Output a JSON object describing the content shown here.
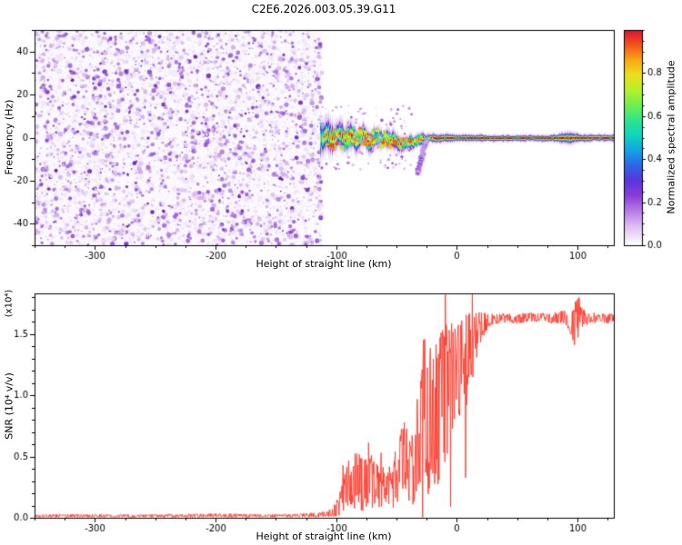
{
  "figure": {
    "background": "#ffffff"
  },
  "chart_data": [
    {
      "type": "heatmap",
      "title": "C2E6.2026.003.05.39.G11",
      "xlabel": "Height of straight line (km)",
      "ylabel": "Frequency (Hz)",
      "xlim": [
        -350,
        130
      ],
      "ylim": [
        -50,
        50
      ],
      "xticks": [
        -300,
        -200,
        -100,
        0,
        100
      ],
      "xminor": 25,
      "yticks": [
        -40,
        -20,
        0,
        20,
        40
      ],
      "yminor": 10,
      "grid": false,
      "colorbar": {
        "label": "Normalized spectral amplitude",
        "ticks": [
          0.0,
          0.2,
          0.4,
          0.6,
          0.8
        ],
        "minor": 0.05,
        "range": [
          0,
          1
        ]
      },
      "colormap": [
        [
          0.0,
          "#ffffff"
        ],
        [
          0.03,
          "#f2e8fa"
        ],
        [
          0.09,
          "#dcbcf2"
        ],
        [
          0.16,
          "#b87ae6"
        ],
        [
          0.23,
          "#8a3fd6"
        ],
        [
          0.3,
          "#5a35dd"
        ],
        [
          0.37,
          "#2f63e8"
        ],
        [
          0.44,
          "#14a3e3"
        ],
        [
          0.51,
          "#0fd4c2"
        ],
        [
          0.58,
          "#2fe48d"
        ],
        [
          0.65,
          "#6fee4f"
        ],
        [
          0.72,
          "#b5f22c"
        ],
        [
          0.79,
          "#ecdf1d"
        ],
        [
          0.86,
          "#f8a913"
        ],
        [
          0.93,
          "#f0551c"
        ],
        [
          1.0,
          "#dd1230"
        ]
      ],
      "noise_field": {
        "description": "dense purple speckle noise before signal acquisition",
        "x_range": [
          -350,
          -112
        ],
        "dot_count": 5200,
        "palette": [
          "#efe2f9",
          "#d3aff0",
          "#9c5fd9",
          "#6d22bd"
        ],
        "bg_tint": "#fbf8fe"
      },
      "signal_track": {
        "description": "narrow spectral line near 0 Hz emerging at -112 km",
        "center_freq_hz": 0,
        "x_range": [
          -112,
          130
        ],
        "profile": [
          [
            -113,
            8,
            0.6,
            0
          ],
          [
            -108,
            7,
            0.75,
            1
          ],
          [
            -103,
            6.5,
            0.8,
            -1
          ],
          [
            -98,
            6,
            0.8,
            1.5
          ],
          [
            -93,
            5.5,
            0.85,
            -1.5
          ],
          [
            -88,
            5.5,
            0.8,
            1
          ],
          [
            -83,
            5,
            0.85,
            -1
          ],
          [
            -78,
            5,
            0.82,
            1.5
          ],
          [
            -73,
            4.5,
            0.85,
            -1.5
          ],
          [
            -68,
            4.5,
            0.82,
            1
          ],
          [
            -63,
            4,
            0.85,
            -1
          ],
          [
            -58,
            4,
            0.82,
            0
          ],
          [
            -53,
            3.8,
            0.85,
            -2
          ],
          [
            -48,
            3.6,
            0.82,
            -2.5
          ],
          [
            -43,
            3.2,
            0.85,
            -3
          ],
          [
            -38,
            3,
            0.85,
            -2
          ],
          [
            -34,
            2.8,
            0.88,
            -1.5
          ],
          [
            -30,
            2.6,
            0.9,
            -1
          ],
          [
            -26,
            2.2,
            0.92,
            -0.5
          ],
          [
            -22,
            2,
            0.94,
            0
          ],
          [
            -18,
            1.9,
            0.95,
            0
          ],
          [
            -14,
            1.8,
            0.95,
            0
          ],
          [
            -10,
            1.8,
            0.96,
            0
          ],
          [
            -5,
            1.7,
            0.96,
            0
          ],
          [
            0,
            1.6,
            0.97,
            0
          ],
          [
            10,
            1.55,
            0.97,
            0
          ],
          [
            20,
            1.5,
            0.97,
            0
          ],
          [
            30,
            1.45,
            0.97,
            0
          ],
          [
            40,
            1.45,
            0.97,
            0
          ],
          [
            50,
            1.4,
            0.97,
            0
          ],
          [
            60,
            1.4,
            0.97,
            0
          ],
          [
            70,
            1.45,
            0.96,
            0
          ],
          [
            80,
            1.6,
            0.95,
            0
          ],
          [
            86,
            2.2,
            0.92,
            0
          ],
          [
            91,
            2.6,
            0.9,
            0
          ],
          [
            96,
            2.2,
            0.92,
            0
          ],
          [
            101,
            1.8,
            0.95,
            0
          ],
          [
            110,
            1.5,
            0.97,
            0
          ],
          [
            120,
            1.5,
            0.97,
            0
          ],
          [
            130,
            1.5,
            0.97,
            0
          ]
        ],
        "tail": {
          "x_range": [
            -33,
            -25
          ],
          "freq_range": [
            -17,
            -1
          ]
        }
      }
    },
    {
      "type": "line",
      "xlabel": "Height of straight line (km)",
      "ylabel": "SNR (10⁴ v/v)",
      "scale_note": "(x10⁴)",
      "xlim": [
        -350,
        130
      ],
      "ylim": [
        0,
        1.83
      ],
      "xticks": [
        -300,
        -200,
        -100,
        0,
        100
      ],
      "xminor": 25,
      "yticks": [
        0.0,
        0.5,
        1.0,
        1.5
      ],
      "yminor": 0.1,
      "color": "#fb3b2d",
      "envelope": [
        [
          -350,
          0.015,
          0.012
        ],
        [
          -300,
          0.016,
          0.012
        ],
        [
          -250,
          0.015,
          0.012
        ],
        [
          -200,
          0.02,
          0.016
        ],
        [
          -160,
          0.016,
          0.012
        ],
        [
          -130,
          0.018,
          0.014
        ],
        [
          -112,
          0.025,
          0.02
        ],
        [
          -104,
          0.04,
          0.035
        ],
        [
          -98,
          0.09,
          0.08
        ],
        [
          -93,
          0.2,
          0.16
        ],
        [
          -88,
          0.32,
          0.22
        ],
        [
          -83,
          0.3,
          0.24
        ],
        [
          -77,
          0.27,
          0.22
        ],
        [
          -71,
          0.31,
          0.26
        ],
        [
          -66,
          0.24,
          0.2
        ],
        [
          -60,
          0.2,
          0.16
        ],
        [
          -54,
          0.26,
          0.2
        ],
        [
          -49,
          0.38,
          0.26
        ],
        [
          -44,
          0.5,
          0.3
        ],
        [
          -40,
          0.42,
          0.3
        ],
        [
          -36,
          0.38,
          0.28
        ],
        [
          -32,
          0.6,
          0.45
        ],
        [
          -28,
          0.95,
          0.6
        ],
        [
          -24,
          0.75,
          0.62
        ],
        [
          -20,
          0.9,
          0.65
        ],
        [
          -16,
          0.85,
          0.65
        ],
        [
          -12,
          0.95,
          0.6
        ],
        [
          -8,
          1.05,
          0.55
        ],
        [
          -4,
          1.1,
          0.52
        ],
        [
          0,
          1.12,
          0.5
        ],
        [
          4,
          1.2,
          0.45
        ],
        [
          8,
          1.28,
          0.4
        ],
        [
          12,
          1.38,
          0.3
        ],
        [
          16,
          1.48,
          0.2
        ],
        [
          20,
          1.56,
          0.12
        ],
        [
          25,
          1.6,
          0.07
        ],
        [
          30,
          1.62,
          0.045
        ],
        [
          40,
          1.63,
          0.04
        ],
        [
          50,
          1.62,
          0.04
        ],
        [
          60,
          1.64,
          0.04
        ],
        [
          70,
          1.63,
          0.04
        ],
        [
          80,
          1.63,
          0.045
        ],
        [
          88,
          1.64,
          0.05
        ],
        [
          94,
          1.6,
          0.1
        ],
        [
          98,
          1.56,
          0.22
        ],
        [
          101,
          1.66,
          0.16
        ],
        [
          104,
          1.62,
          0.08
        ],
        [
          110,
          1.63,
          0.045
        ],
        [
          120,
          1.63,
          0.04
        ],
        [
          130,
          1.62,
          0.04
        ]
      ]
    }
  ]
}
